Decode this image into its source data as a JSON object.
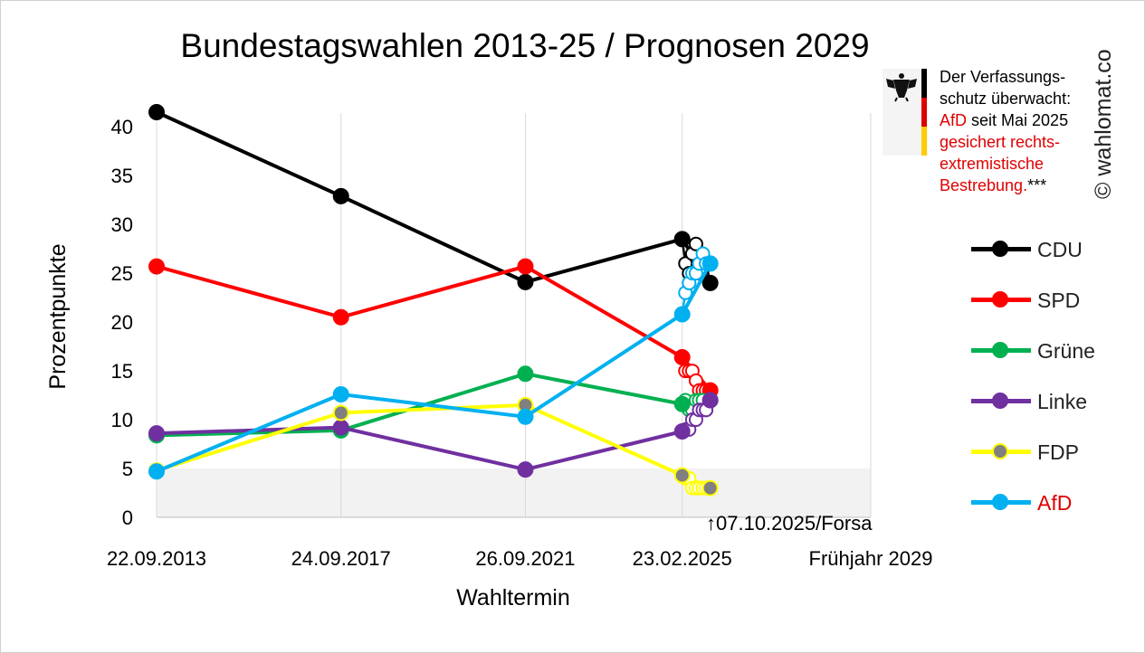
{
  "title": "Bundestagswahlen 2013-25 / Prognosen 2029",
  "watermark": "© wahlomat.co",
  "notice": {
    "line1": "Der Verfassungs-",
    "line2": "schutz überwacht:",
    "afd": "AfD",
    "line3_rest": " seit Mai 2025",
    "red_line1": "gesichert rechts-",
    "red_line2": "extremistische",
    "red_line3": "Bestrebung.",
    "footnote": "***"
  },
  "annotation": "↑07.10.2025/Forsa",
  "colors": {
    "CDU": "#000000",
    "SPD": "#ff0000",
    "Grüne": "#00b050",
    "Linke": "#7030a0",
    "FDP": "#ffff00",
    "AfD": "#00b0f0",
    "fdp_dot": "#808080",
    "afd_label": "#e00000"
  },
  "chart_data": {
    "type": "line",
    "xlabel": "Wahltermin",
    "ylabel": "Prozentpunkte",
    "ylim": [
      0,
      42
    ],
    "yticks": [
      0,
      5,
      10,
      15,
      20,
      25,
      30,
      35,
      40
    ],
    "x_labels": [
      "22.09.2013",
      "24.09.2017",
      "26.09.2021",
      "23.02.2025",
      "Frühjahr 2029"
    ],
    "x_positions": [
      2013.72,
      2017.73,
      2021.74,
      2025.15,
      2029.25
    ],
    "xlim": [
      2013.72,
      2029.25
    ],
    "shaded_band_y": [
      0,
      5
    ],
    "grid": "vertical",
    "series": [
      {
        "name": "CDU",
        "x": [
          2013.72,
          2017.73,
          2021.74,
          2025.15
        ],
        "values": [
          41.5,
          32.9,
          24.1,
          28.5
        ],
        "polls": {
          "x": [
            2025.15,
            2025.22,
            2025.3,
            2025.37,
            2025.45,
            2025.52,
            2025.6,
            2025.67,
            2025.76
          ],
          "values": [
            28.5,
            26.0,
            25.0,
            27.0,
            28.0,
            25.0,
            25.5,
            26.0,
            24.0
          ]
        }
      },
      {
        "name": "SPD",
        "x": [
          2013.72,
          2017.73,
          2021.74,
          2025.15
        ],
        "values": [
          25.7,
          20.5,
          25.7,
          16.4
        ],
        "polls": {
          "x": [
            2025.15,
            2025.22,
            2025.3,
            2025.37,
            2025.45,
            2025.52,
            2025.6,
            2025.67,
            2025.76
          ],
          "values": [
            16.4,
            15.0,
            15.0,
            15.0,
            14.0,
            13.0,
            13.0,
            13.0,
            13.0
          ]
        }
      },
      {
        "name": "Grüne",
        "x": [
          2013.72,
          2017.73,
          2021.74,
          2025.15
        ],
        "values": [
          8.4,
          8.9,
          14.7,
          11.6
        ],
        "polls": {
          "x": [
            2025.15,
            2025.22,
            2025.3,
            2025.37,
            2025.45,
            2025.52,
            2025.6,
            2025.67,
            2025.76
          ],
          "values": [
            11.6,
            12.0,
            11.0,
            11.0,
            12.0,
            12.0,
            12.0,
            11.0,
            12.0
          ]
        }
      },
      {
        "name": "Linke",
        "x": [
          2013.72,
          2017.73,
          2021.74,
          2025.15
        ],
        "values": [
          8.6,
          9.2,
          4.9,
          8.8
        ],
        "polls": {
          "x": [
            2025.15,
            2025.22,
            2025.3,
            2025.37,
            2025.45,
            2025.52,
            2025.6,
            2025.67,
            2025.76
          ],
          "values": [
            8.8,
            9.0,
            9.0,
            10.0,
            10.0,
            11.0,
            11.0,
            11.0,
            12.0
          ]
        }
      },
      {
        "name": "FDP",
        "x": [
          2013.72,
          2017.73,
          2021.74,
          2025.15
        ],
        "values": [
          4.8,
          10.7,
          11.5,
          4.3
        ],
        "polls": {
          "x": [
            2025.15,
            2025.22,
            2025.3,
            2025.37,
            2025.45,
            2025.52,
            2025.6,
            2025.67,
            2025.76
          ],
          "values": [
            4.3,
            4.0,
            4.0,
            3.0,
            3.0,
            3.0,
            3.0,
            3.0,
            3.0
          ]
        }
      },
      {
        "name": "AfD",
        "x": [
          2013.72,
          2017.73,
          2021.74,
          2025.15
        ],
        "values": [
          4.7,
          12.6,
          10.3,
          20.8
        ],
        "polls": {
          "x": [
            2025.15,
            2025.22,
            2025.3,
            2025.37,
            2025.45,
            2025.52,
            2025.6,
            2025.67,
            2025.76
          ],
          "values": [
            20.8,
            23.0,
            24.0,
            25.0,
            25.0,
            26.0,
            27.0,
            26.0,
            26.0
          ]
        }
      }
    ]
  }
}
